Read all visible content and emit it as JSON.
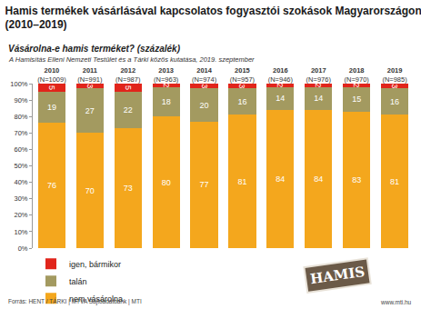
{
  "chart_data": {
    "type": "bar",
    "title": "Hamis termékek vásárlásával kapcsolatos fogyasztói szokások Magyarországon\n(2010–2019)",
    "subtitle": "Vásárolna-e hamis terméket? (százalék)",
    "source_note": "A Hamisítás Elleni Nemzeti Testület és a Tárki közös kutatása, 2019. szeptember",
    "footer": "Forrás: HENT / TÁRKI | MTVA Sajtóadatbank | MTI",
    "website": "www.mti.hu",
    "stamp": "HAMIS",
    "categories": [
      "2010",
      "2011",
      "2012",
      "2013",
      "2014",
      "2015",
      "2016",
      "2017",
      "2018",
      "2019"
    ],
    "category_sublabels": [
      "(N=1009)",
      "(N=991)",
      "(N=987)",
      "(N=963)",
      "(N=974)",
      "(N=957)",
      "(N=946)",
      "(N=976)",
      "(N=970)",
      "(N=985)"
    ],
    "series": [
      {
        "name": "nem vásárolna",
        "color": "#f4a71d",
        "values": [
          76,
          70,
          73,
          80,
          77,
          81,
          84,
          84,
          83,
          81
        ]
      },
      {
        "name": "talán",
        "color": "#a39a60",
        "values": [
          19,
          27,
          22,
          18,
          20,
          16,
          14,
          14,
          15,
          16
        ]
      },
      {
        "name": "igen, bármikor",
        "color": "#e1251b",
        "values": [
          5,
          3,
          5,
          2,
          3,
          3,
          2,
          2,
          2,
          3
        ]
      }
    ],
    "stacked": true,
    "data_labels": true,
    "legend": "bottom left",
    "grid": false,
    "ylim": [
      0,
      100
    ],
    "yticks": [
      {
        "value": 0,
        "label": "0%"
      },
      {
        "value": 10,
        "label": "10%"
      },
      {
        "value": 20,
        "label": "20%"
      },
      {
        "value": 30,
        "label": "30%"
      },
      {
        "value": 40,
        "label": "40%"
      },
      {
        "value": 50,
        "label": "50%"
      },
      {
        "value": 60,
        "label": "60%"
      },
      {
        "value": 70,
        "label": "70%"
      },
      {
        "value": 80,
        "label": "80%"
      },
      {
        "value": 90,
        "label": "90%"
      },
      {
        "value": 100,
        "label": "100%"
      }
    ]
  }
}
